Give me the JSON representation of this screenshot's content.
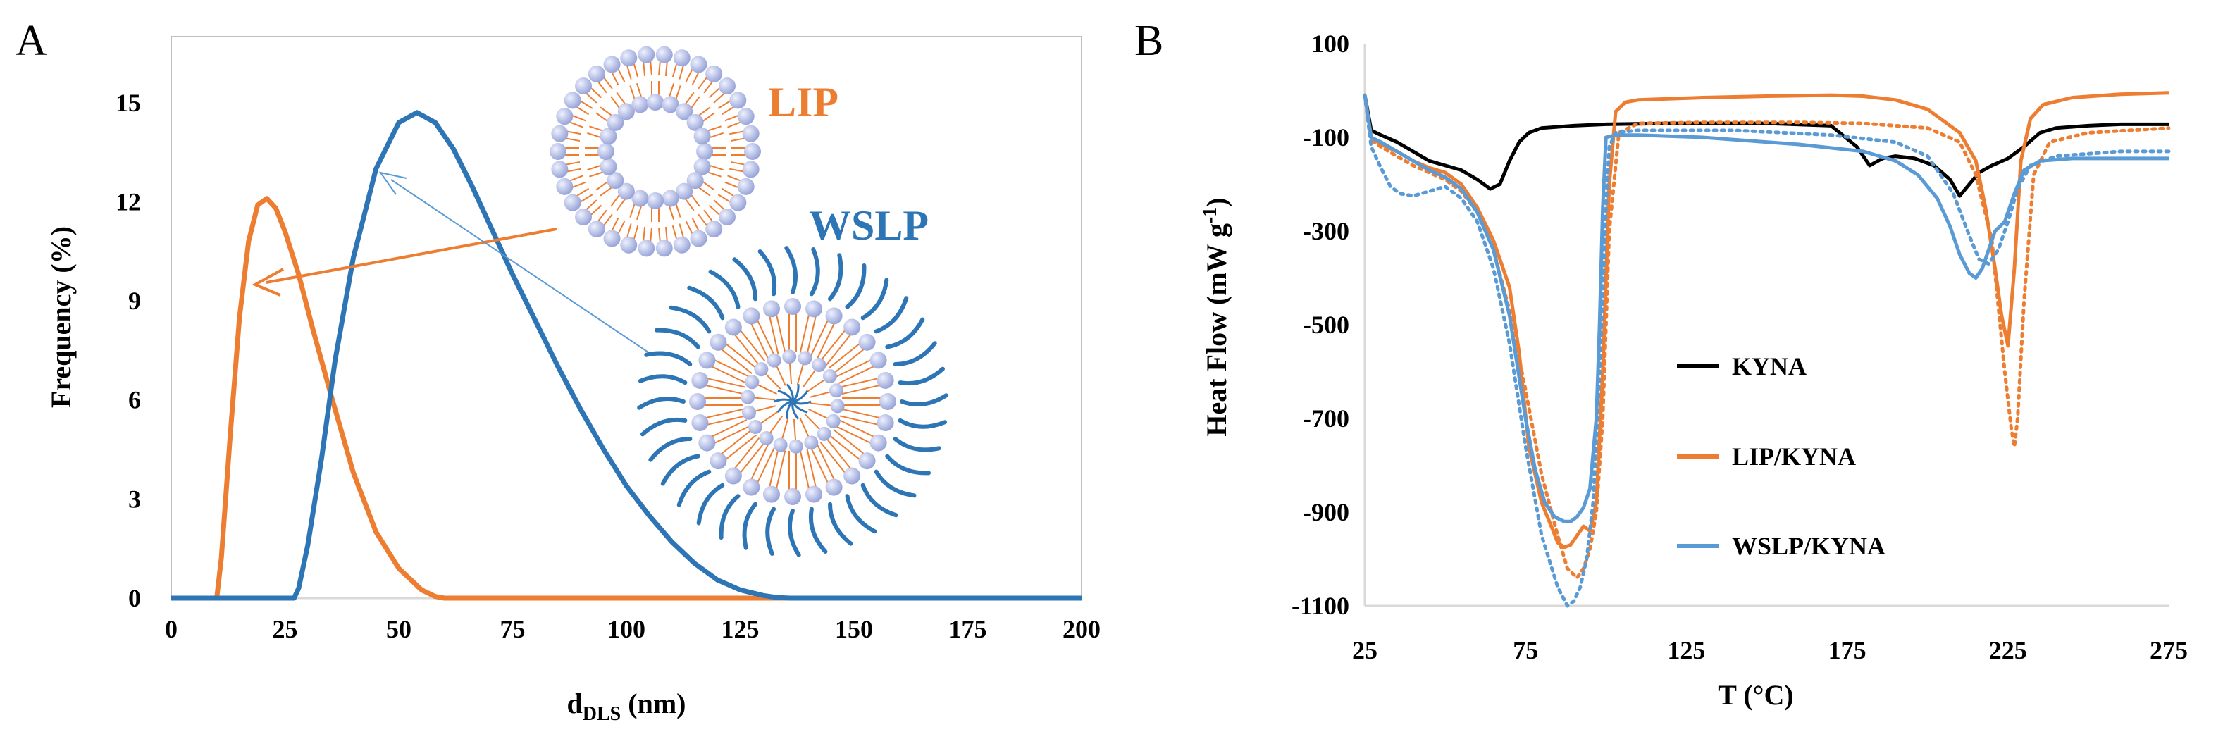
{
  "colors": {
    "lip": "#ED7D31",
    "wslp": "#2E75B6",
    "wslp_light": "#5B9BD5",
    "kyna": "#000000",
    "bead": "#b9c2e8"
  },
  "chart_data": [
    {
      "panel": "A",
      "type": "line",
      "title": "",
      "xlabel_main": "d",
      "xlabel_sub": "DLS",
      "xlabel_unit": " (nm)",
      "ylabel": "Frequency (%)",
      "xlim": [
        0,
        200
      ],
      "ylim": [
        0,
        17
      ],
      "xticks": [
        0,
        25,
        50,
        75,
        100,
        125,
        150,
        175,
        200
      ],
      "yticks": [
        0,
        3,
        6,
        9,
        12,
        15
      ],
      "grid": false,
      "annotations": {
        "lip_label": "LIP",
        "wslp_label": "WSLP"
      },
      "series": [
        {
          "name": "LIP",
          "color_key": "lip",
          "x": [
            0,
            10,
            11,
            13,
            15,
            17,
            19,
            21,
            23,
            25,
            28,
            31,
            35,
            40,
            45,
            50,
            55,
            58,
            60,
            62,
            200
          ],
          "y": [
            0,
            0,
            1.2,
            5.0,
            8.5,
            10.8,
            11.9,
            12.1,
            11.8,
            11.1,
            9.8,
            8.2,
            6.2,
            3.8,
            2.0,
            0.9,
            0.25,
            0.05,
            0,
            0,
            0
          ]
        },
        {
          "name": "WSLP",
          "color_key": "wslp",
          "x": [
            0,
            27,
            28,
            30,
            33,
            36,
            40,
            45,
            50,
            54,
            58,
            62,
            66,
            70,
            75,
            80,
            85,
            90,
            95,
            100,
            105,
            110,
            115,
            120,
            125,
            130,
            133,
            136,
            200
          ],
          "y": [
            0,
            0,
            0.3,
            1.6,
            4.2,
            7.2,
            10.3,
            13.0,
            14.4,
            14.7,
            14.4,
            13.6,
            12.5,
            11.3,
            9.8,
            8.4,
            7.0,
            5.7,
            4.5,
            3.4,
            2.5,
            1.7,
            1.05,
            0.55,
            0.25,
            0.08,
            0.02,
            0,
            0
          ]
        }
      ]
    },
    {
      "panel": "B",
      "type": "line",
      "title": "",
      "xlabel": "T (°C)",
      "ylabel_main": "Heat Flow (mW g",
      "ylabel_sup": "-1",
      "ylabel_end": ")",
      "xlim": [
        25,
        275
      ],
      "ylim": [
        -1100,
        100
      ],
      "xticks": [
        25,
        75,
        125,
        175,
        225,
        275
      ],
      "yticks": [
        100,
        -100,
        -300,
        -500,
        -700,
        -900,
        -1100
      ],
      "grid": false,
      "legend": [
        "KYNA",
        "LIP/KYNA",
        "WSLP/KYNA"
      ],
      "legend_position": "center-left",
      "series": [
        {
          "name": "KYNA",
          "color_key": "kyna",
          "dashed": false,
          "x": [
            25,
            27,
            30,
            35,
            40,
            45,
            50,
            55,
            60,
            64,
            67,
            70,
            73,
            76,
            80,
            90,
            100,
            120,
            150,
            170,
            178,
            182,
            186,
            190,
            196,
            202,
            207,
            210,
            213,
            216,
            220,
            225,
            230,
            235,
            240,
            250,
            260,
            275
          ],
          "y": [
            -10,
            -85,
            -95,
            -110,
            -130,
            -150,
            -160,
            -170,
            -190,
            -210,
            -200,
            -150,
            -110,
            -90,
            -80,
            -75,
            -72,
            -70,
            -70,
            -75,
            -120,
            -160,
            -145,
            -140,
            -145,
            -160,
            -190,
            -225,
            -200,
            -175,
            -160,
            -145,
            -120,
            -90,
            -80,
            -75,
            -72,
            -72
          ]
        },
        {
          "name": "LIP/KYNA",
          "color_key": "lip",
          "dashed": false,
          "x": [
            25,
            27,
            30,
            35,
            40,
            45,
            50,
            55,
            60,
            65,
            70,
            73,
            76,
            78,
            80,
            83,
            85,
            87,
            89,
            91,
            93,
            95,
            97,
            99,
            101,
            103,
            106,
            110,
            130,
            150,
            170,
            180,
            190,
            200,
            210,
            215,
            218,
            221,
            223,
            225,
            227,
            229,
            232,
            236,
            245,
            260,
            275
          ],
          "y": [
            -10,
            -100,
            -115,
            -130,
            -150,
            -165,
            -175,
            -200,
            -250,
            -320,
            -420,
            -560,
            -760,
            -820,
            -880,
            -930,
            -965,
            -975,
            -970,
            -950,
            -930,
            -940,
            -880,
            -600,
            -200,
            -45,
            -25,
            -20,
            -15,
            -12,
            -10,
            -12,
            -20,
            -40,
            -90,
            -150,
            -250,
            -380,
            -480,
            -545,
            -380,
            -150,
            -60,
            -30,
            -15,
            -8,
            -5
          ]
        },
        {
          "name": "LIP/KYNA (dotted)",
          "color_key": "lip",
          "dashed": true,
          "x": [
            25,
            27,
            30,
            35,
            40,
            45,
            50,
            55,
            60,
            65,
            70,
            75,
            80,
            85,
            88,
            91,
            93,
            95,
            97,
            99,
            101,
            104,
            110,
            130,
            160,
            180,
            200,
            210,
            215,
            220,
            224,
            226,
            227,
            228,
            230,
            233,
            238,
            250,
            275
          ],
          "y": [
            -10,
            -105,
            -120,
            -140,
            -160,
            -175,
            -190,
            -215,
            -260,
            -340,
            -470,
            -640,
            -820,
            -950,
            -1020,
            -1040,
            -1020,
            -980,
            -900,
            -700,
            -300,
            -90,
            -70,
            -68,
            -68,
            -70,
            -80,
            -110,
            -180,
            -320,
            -600,
            -720,
            -760,
            -700,
            -450,
            -180,
            -110,
            -90,
            -80
          ]
        },
        {
          "name": "WSLP/KYNA",
          "color_key": "wslp_light",
          "dashed": false,
          "x": [
            25,
            27,
            30,
            35,
            40,
            45,
            50,
            55,
            60,
            65,
            70,
            75,
            78,
            81,
            84,
            87,
            89,
            91,
            93,
            95,
            97,
            98,
            99,
            100,
            103,
            110,
            130,
            160,
            180,
            190,
            197,
            203,
            207,
            210,
            213,
            215,
            217,
            219,
            221,
            224,
            227,
            230,
            235,
            245,
            260,
            275
          ],
          "y": [
            -10,
            -100,
            -110,
            -130,
            -150,
            -170,
            -185,
            -210,
            -260,
            -340,
            -480,
            -700,
            -810,
            -880,
            -910,
            -920,
            -920,
            -910,
            -890,
            -850,
            -700,
            -500,
            -250,
            -100,
            -95,
            -95,
            -100,
            -115,
            -130,
            -150,
            -180,
            -230,
            -290,
            -350,
            -390,
            -400,
            -380,
            -340,
            -300,
            -280,
            -220,
            -170,
            -150,
            -145,
            -145,
            -145
          ]
        },
        {
          "name": "WSLP/KYNA (dotted)",
          "color_key": "wslp_light",
          "dashed": true,
          "x": [
            25,
            27,
            30,
            33,
            36,
            40,
            45,
            50,
            55,
            60,
            65,
            70,
            75,
            80,
            85,
            88,
            90,
            92,
            94,
            96,
            98,
            100,
            101,
            103,
            110,
            140,
            170,
            190,
            200,
            208,
            213,
            216,
            219,
            222,
            225,
            228,
            232,
            240,
            260,
            275
          ],
          "y": [
            -10,
            -120,
            -165,
            -205,
            -220,
            -225,
            -215,
            -205,
            -230,
            -280,
            -380,
            -540,
            -760,
            -950,
            -1060,
            -1100,
            -1090,
            -1060,
            -1000,
            -880,
            -600,
            -250,
            -120,
            -90,
            -85,
            -85,
            -95,
            -110,
            -140,
            -220,
            -310,
            -360,
            -370,
            -340,
            -280,
            -210,
            -160,
            -140,
            -130,
            -130
          ]
        }
      ]
    }
  ]
}
